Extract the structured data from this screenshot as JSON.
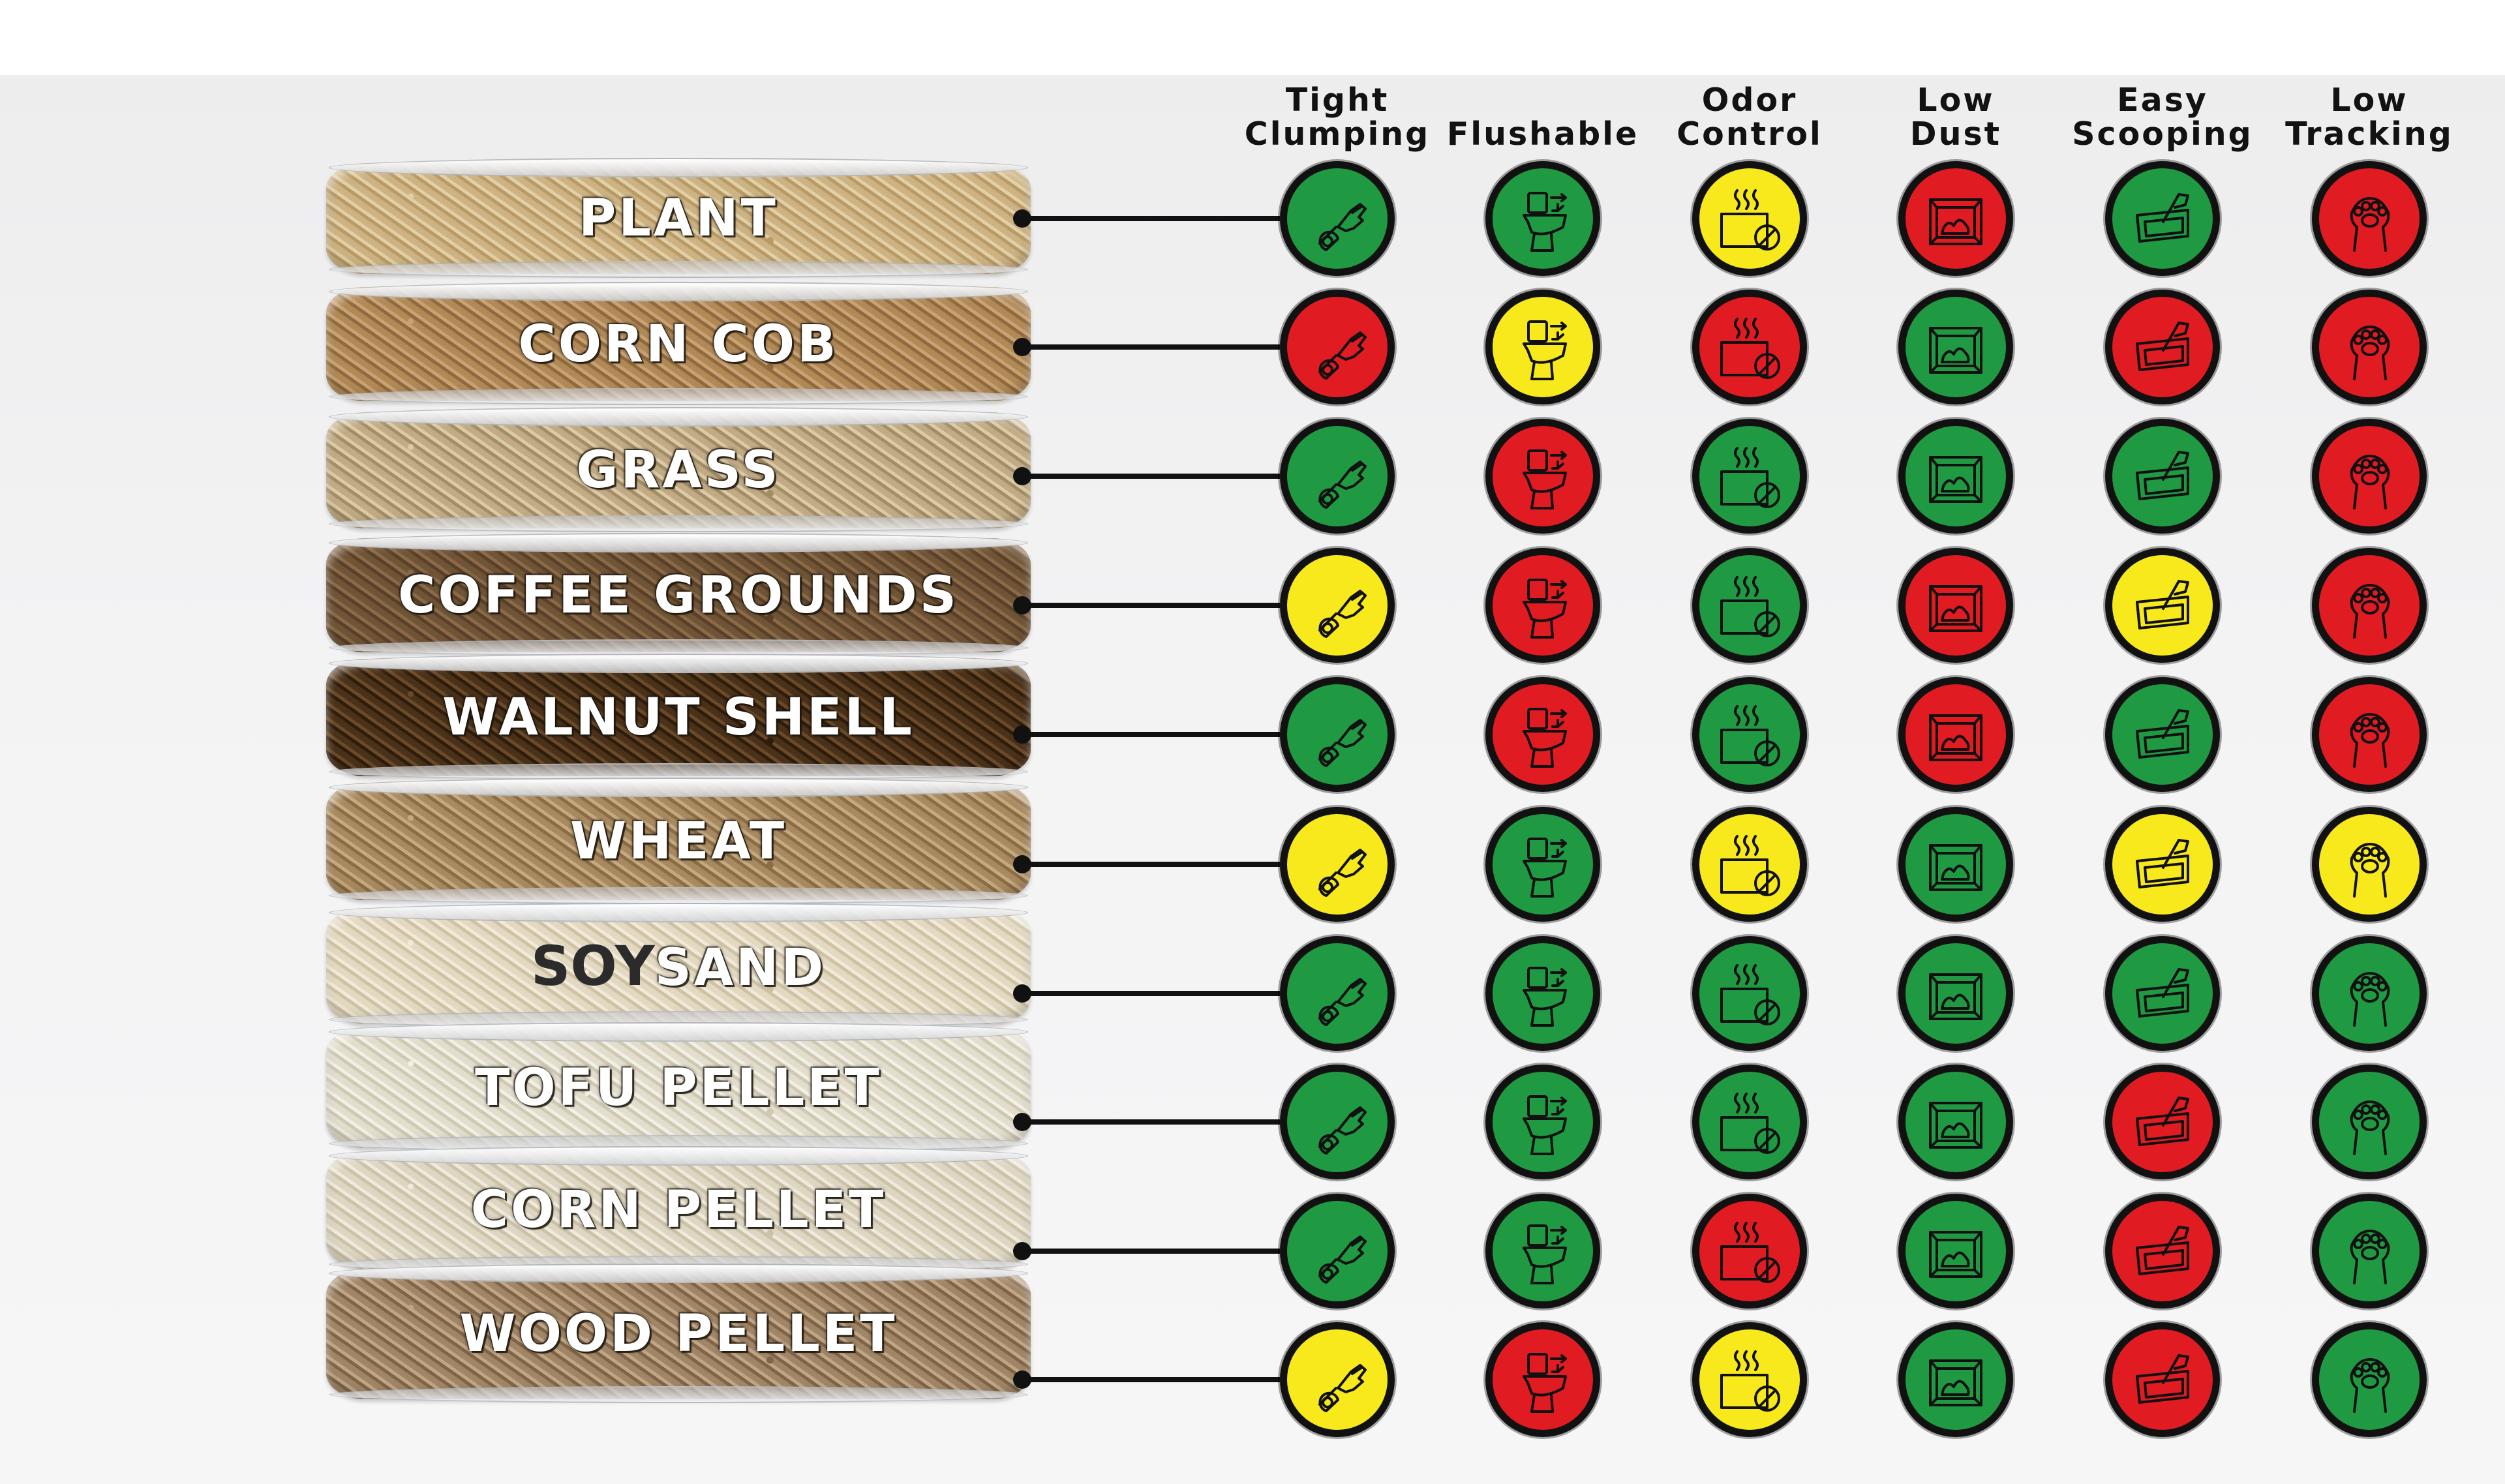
{
  "colors": {
    "green": "#1f9a43",
    "red": "#e01b22",
    "yellow": "#f7e91b",
    "outline": "#111111"
  },
  "columns": [
    {
      "id": "clumping",
      "lines": [
        "Tight",
        "Clumping"
      ],
      "icon": "scoop-hand-icon"
    },
    {
      "id": "flushable",
      "lines": [
        "",
        "Flushable"
      ],
      "icon": "toilet-flush-icon"
    },
    {
      "id": "odor",
      "lines": [
        "Odor",
        "Control"
      ],
      "icon": "odor-block-icon"
    },
    {
      "id": "dust",
      "lines": [
        "Low",
        "Dust"
      ],
      "icon": "litter-box-dust-icon"
    },
    {
      "id": "scooping",
      "lines": [
        "Easy",
        "Scooping"
      ],
      "icon": "scoop-tray-icon"
    },
    {
      "id": "tracking",
      "lines": [
        "Low",
        "Tracking"
      ],
      "icon": "paw-print-icon"
    }
  ],
  "rows": [
    {
      "name": "PLANT",
      "ratings": [
        "green",
        "green",
        "yellow",
        "red",
        "green",
        "red"
      ]
    },
    {
      "name": "CORN COB",
      "ratings": [
        "red",
        "yellow",
        "red",
        "green",
        "red",
        "red"
      ]
    },
    {
      "name": "GRASS",
      "ratings": [
        "green",
        "red",
        "green",
        "green",
        "green",
        "red"
      ]
    },
    {
      "name": "COFFEE GROUNDS",
      "ratings": [
        "yellow",
        "red",
        "green",
        "red",
        "yellow",
        "red"
      ]
    },
    {
      "name": "WALNUT SHELL",
      "ratings": [
        "green",
        "red",
        "green",
        "red",
        "green",
        "red"
      ]
    },
    {
      "name": "WHEAT",
      "ratings": [
        "yellow",
        "green",
        "yellow",
        "green",
        "yellow",
        "yellow"
      ]
    },
    {
      "name": "SOYSAND",
      "brand_dark": "SOY",
      "brand_light": "SAND",
      "ratings": [
        "green",
        "green",
        "green",
        "green",
        "green",
        "green"
      ]
    },
    {
      "name": "TOFU PELLET",
      "ratings": [
        "green",
        "green",
        "green",
        "green",
        "red",
        "green"
      ]
    },
    {
      "name": "CORN PELLET",
      "ratings": [
        "green",
        "green",
        "red",
        "green",
        "red",
        "green"
      ]
    },
    {
      "name": "WOOD PELLET",
      "ratings": [
        "yellow",
        "red",
        "yellow",
        "green",
        "red",
        "green"
      ]
    }
  ]
}
